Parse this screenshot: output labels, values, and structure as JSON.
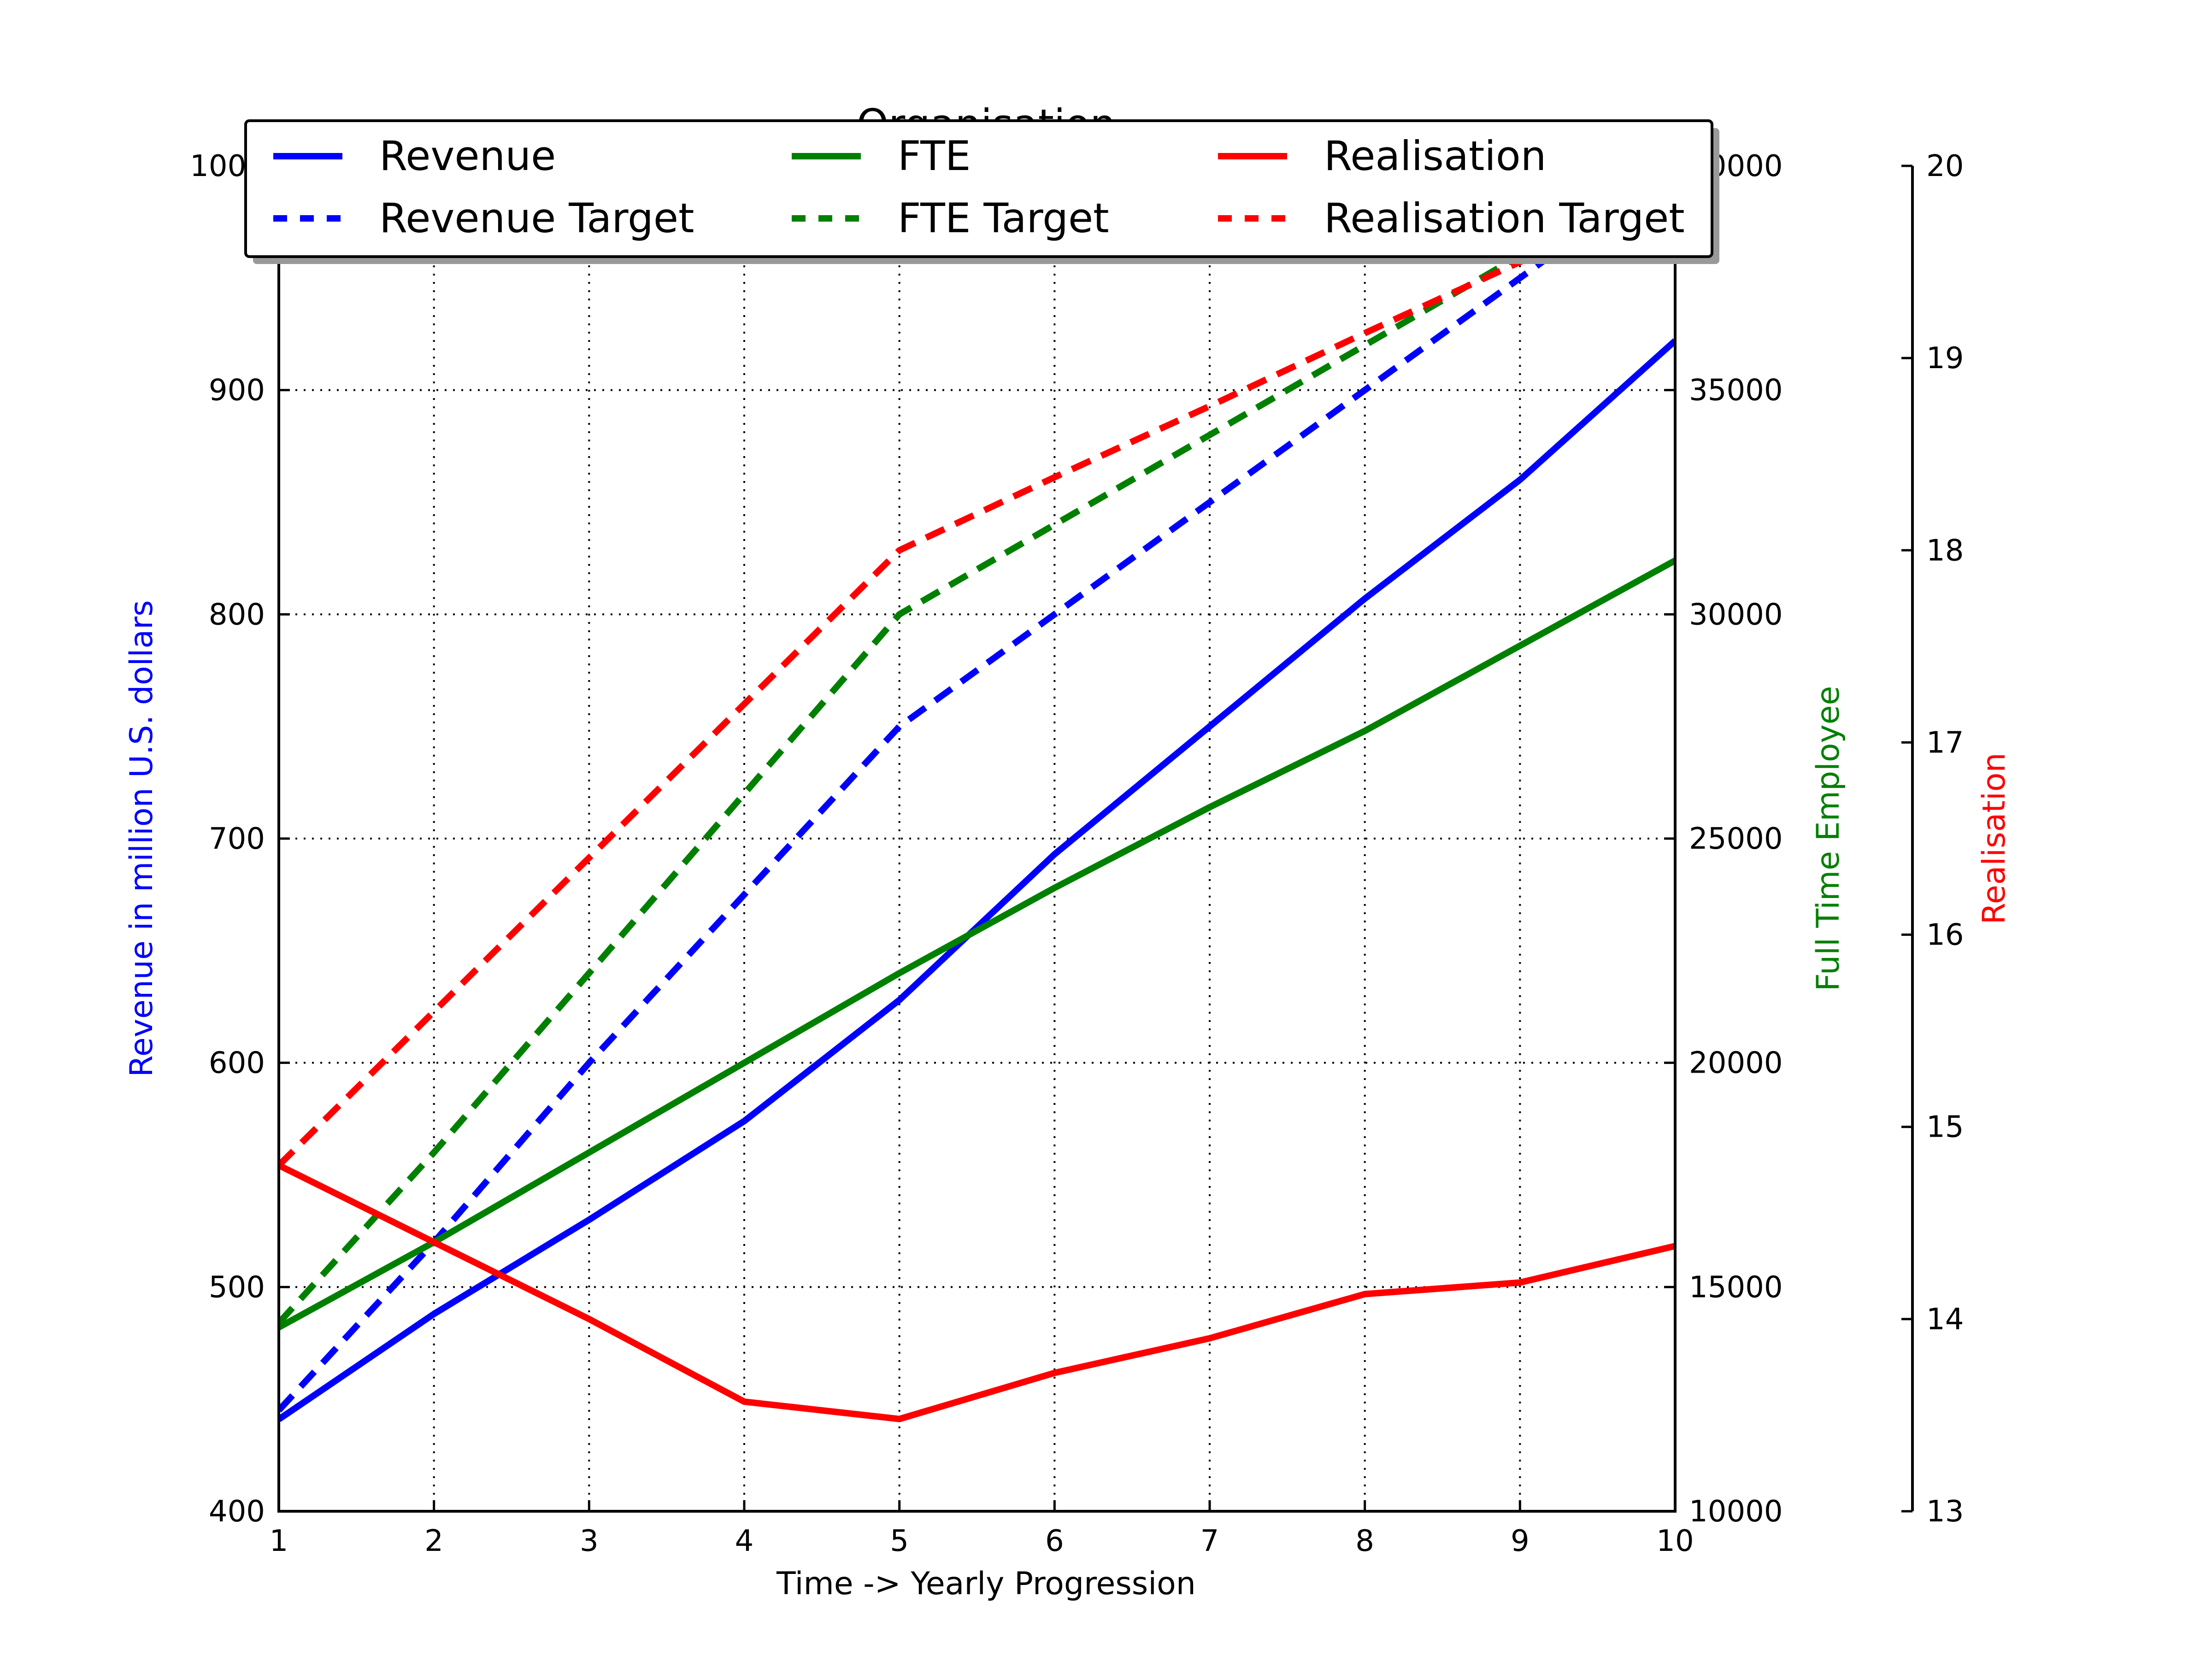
{
  "chart_data": {
    "type": "line",
    "title": "Organisation",
    "xlabel": "Time -> Yearly Progression",
    "x": [
      1,
      2,
      3,
      4,
      5,
      6,
      7,
      8,
      9,
      10
    ],
    "xlim": [
      1,
      10
    ],
    "grid": true,
    "legend_position": "top",
    "axes": [
      {
        "id": "revenue",
        "side": "left",
        "label": "Revenue in million U.S. dollars",
        "label_color": "#0000ff",
        "ylim": [
          400,
          1000
        ],
        "ticks": [
          "400",
          "500",
          "600",
          "700",
          "800",
          "900",
          "1000"
        ]
      },
      {
        "id": "fte",
        "side": "right",
        "label": "Full Time Employee",
        "label_color": "#008000",
        "ylim": [
          10000,
          40000
        ],
        "ticks": [
          "10000",
          "15000",
          "20000",
          "25000",
          "30000",
          "35000",
          "40000"
        ]
      },
      {
        "id": "realisation",
        "side": "right-outer",
        "label": "Realisation",
        "label_color": "#ff0000",
        "ylim": [
          13,
          20
        ],
        "ticks": [
          "13",
          "14",
          "15",
          "16",
          "17",
          "18",
          "19",
          "20"
        ]
      }
    ],
    "series": [
      {
        "name": "Revenue",
        "axis": "revenue",
        "color": "#0000ff",
        "style": "solid",
        "values": [
          441,
          488,
          530,
          574,
          628,
          693,
          750,
          807,
          860,
          922
        ]
      },
      {
        "name": "Revenue Target",
        "axis": "revenue",
        "color": "#0000ff",
        "style": "dashed",
        "values": [
          445,
          520,
          600,
          675,
          750,
          800,
          850,
          900,
          950,
          1000
        ]
      },
      {
        "name": "FTE",
        "axis": "fte",
        "color": "#008000",
        "style": "solid",
        "values": [
          14100,
          16000,
          18000,
          20000,
          22000,
          23900,
          25700,
          27400,
          29300,
          31200
        ]
      },
      {
        "name": "FTE Target",
        "axis": "fte",
        "color": "#008000",
        "style": "dashed",
        "values": [
          14200,
          18000,
          22000,
          26000,
          30000,
          32000,
          34000,
          36000,
          38000,
          40000
        ]
      },
      {
        "name": "Realisation",
        "axis": "realisation",
        "color": "#ff0000",
        "style": "solid",
        "values": [
          14.8,
          14.4,
          14.0,
          13.57,
          13.48,
          13.72,
          13.9,
          14.13,
          14.19,
          14.38
        ]
      },
      {
        "name": "Realisation Target",
        "axis": "realisation",
        "color": "#ff0000",
        "style": "dashed",
        "values": [
          14.8,
          15.6,
          16.4,
          17.2,
          18.0,
          18.38,
          18.75,
          19.13,
          19.5,
          19.88
        ]
      }
    ]
  }
}
